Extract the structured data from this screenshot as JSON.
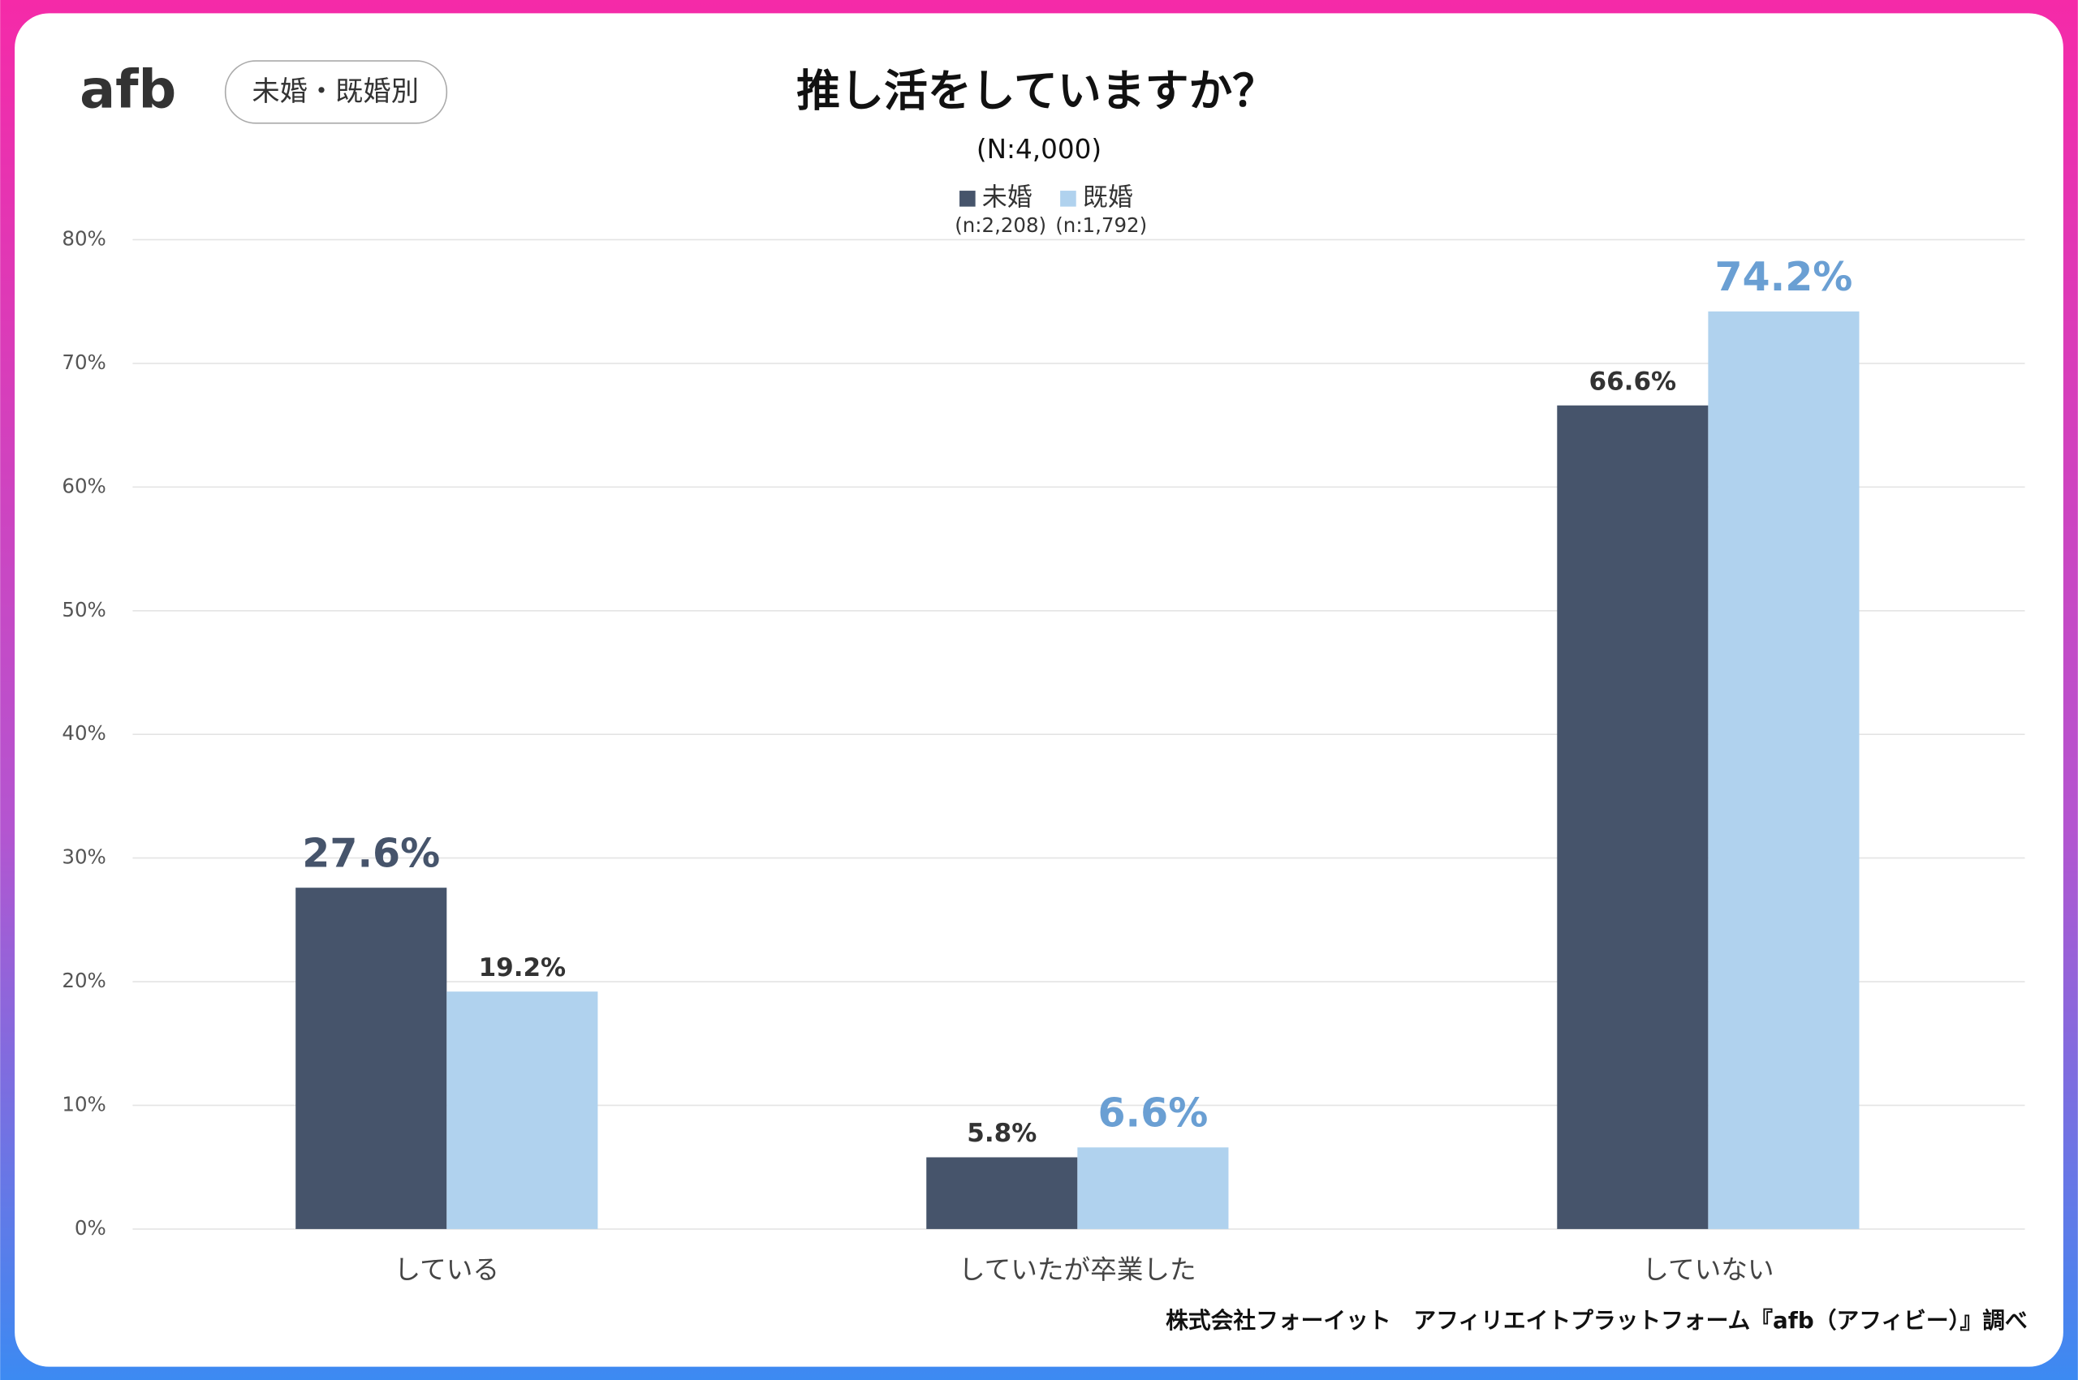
{
  "badge": "未婚・既婚別",
  "logo": "afb",
  "chart_data": {
    "type": "bar",
    "title": "推し活をしていますか？",
    "subtitle": "(N:4,000)",
    "categories": [
      "している",
      "していたが卒業した",
      "していない"
    ],
    "series": [
      {
        "name": "未婚",
        "n_label": "(n:2,208)",
        "color": "#46546b",
        "values": [
          27.6,
          5.8,
          66.6
        ],
        "value_labels": [
          "27.6%",
          "5.8%",
          "66.6%"
        ],
        "emphasis": [
          true,
          false,
          false
        ]
      },
      {
        "name": "既婚",
        "n_label": "(n:1,792)",
        "color": "#b0d2ee",
        "values": [
          19.2,
          6.6,
          74.2
        ],
        "value_labels": [
          "19.2%",
          "6.6%",
          "74.2%"
        ],
        "emphasis": [
          false,
          true,
          true
        ]
      }
    ],
    "ylim": [
      0,
      80
    ],
    "yticks": [
      {
        "value": 0,
        "label": "0%"
      },
      {
        "value": 10,
        "label": "10%"
      },
      {
        "value": 20,
        "label": "20%"
      },
      {
        "value": 30,
        "label": "30%"
      },
      {
        "value": 40,
        "label": "40%"
      },
      {
        "value": 50,
        "label": "50%"
      },
      {
        "value": 60,
        "label": "60%"
      },
      {
        "value": 70,
        "label": "70%"
      },
      {
        "value": 80,
        "label": "80%"
      }
    ],
    "grid": true,
    "source": "株式会社フォーイット　アフィリエイトプラットフォーム『afb（アフィビー）』調べ"
  }
}
